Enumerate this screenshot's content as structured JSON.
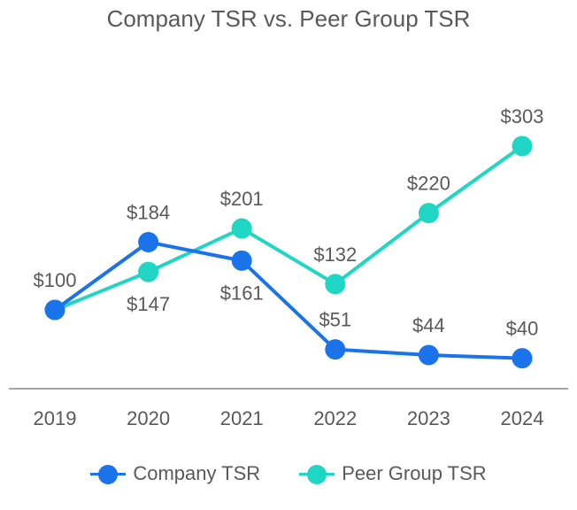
{
  "chart_data": {
    "type": "line",
    "title": "Company TSR vs. Peer Group TSR",
    "categories": [
      "2019",
      "2020",
      "2021",
      "2022",
      "2023",
      "2024"
    ],
    "series": [
      {
        "name": "Company TSR",
        "values": [
          100,
          184,
          161,
          51,
          44,
          40
        ],
        "labels": [
          "",
          "$184",
          "$161",
          "$51",
          "$44",
          "$40"
        ],
        "label_position": [
          "",
          "above",
          "below",
          "above",
          "above",
          "above"
        ],
        "color": "#1A73E8"
      },
      {
        "name": "Peer Group TSR",
        "values": [
          100,
          147,
          201,
          132,
          220,
          303
        ],
        "labels": [
          "$100",
          "$147",
          "$201",
          "$132",
          "$220",
          "$303"
        ],
        "label_position": [
          "above",
          "below",
          "above",
          "above",
          "above",
          "above"
        ],
        "color": "#1ED6C3"
      }
    ],
    "xlabel": "",
    "ylabel": "",
    "ylim": [
      0,
      340
    ],
    "grid": false,
    "legend": "bottom"
  }
}
